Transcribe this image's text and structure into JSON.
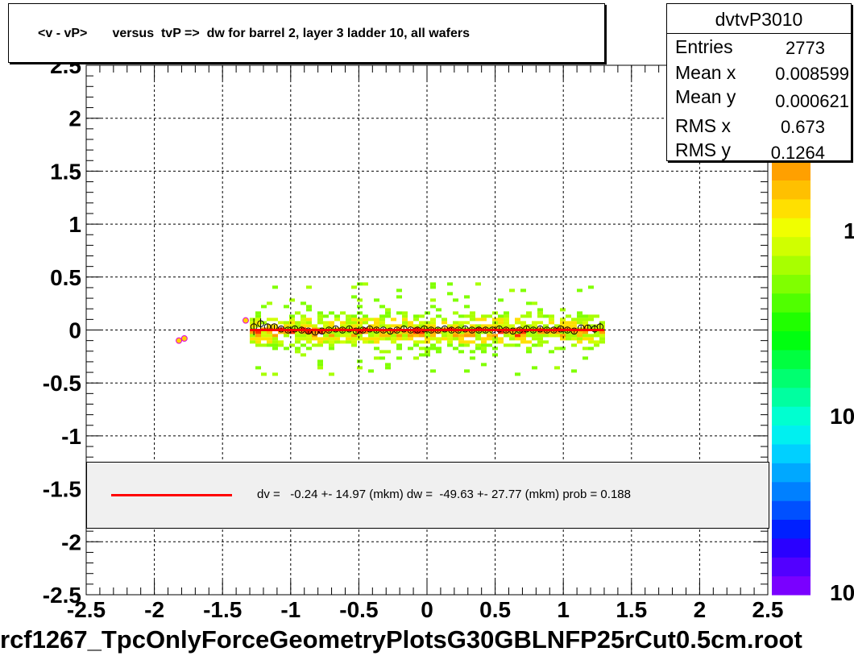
{
  "header": {
    "title": "<v - vP>       versus  tvP =>  dw for barrel 2, layer 3 ladder 10, all wafers"
  },
  "stats": {
    "name": "dvtvP3010",
    "rows": [
      {
        "label": "Entries",
        "value": "2773"
      },
      {
        "label": "Mean x",
        "value": "0.008599"
      },
      {
        "label": "Mean y",
        "value": "0.000621"
      },
      {
        "label": "RMS x",
        "value": "0.673"
      },
      {
        "label": "RMS y",
        "value": "0.1264"
      }
    ]
  },
  "fit": {
    "line_color": "#ff0000",
    "text": "dv =   -0.24 +- 14.97 (mkm) dw =  -49.63 +- 27.77 (mkm) prob = 0.188"
  },
  "footer": {
    "text": "rcf1267_TpcOnlyForceGeometryPlotsG30GBLNFP25rCut0.5cm.root"
  },
  "chart_data": {
    "type": "heatmap",
    "title": "<v - vP>       versus  tvP =>  dw for barrel 2, layer 3 ladder 10, all wafers",
    "xlabel": "",
    "ylabel": "",
    "xlim": [
      -2.5,
      2.5
    ],
    "ylim": [
      -2.5,
      2.5
    ],
    "x_ticks": [
      "-2.5",
      "-2",
      "-1.5",
      "-1",
      "-0.5",
      "0",
      "0.5",
      "1",
      "1.5",
      "2",
      "2.5"
    ],
    "y_ticks": [
      "-2.5",
      "-2",
      "-1.5",
      "-1",
      "-0.5",
      "0",
      "0.5",
      "1",
      "1.5",
      "2",
      "2.5"
    ],
    "grid": true,
    "z_scale": "log",
    "z_tick_labels": [
      "1",
      "10",
      "10"
    ],
    "palette": [
      "#7a00ff",
      "#5200ff",
      "#2a00ff",
      "#0020ff",
      "#0050ff",
      "#0080ff",
      "#00a8ff",
      "#00d0ff",
      "#00f0f0",
      "#00ffd0",
      "#00ffa0",
      "#00ff70",
      "#00ff40",
      "#00ff10",
      "#20ff00",
      "#50ff00",
      "#80ff00",
      "#a8ff00",
      "#d0ff00",
      "#f0ff00",
      "#ffe000",
      "#ffc000",
      "#ffa000"
    ],
    "density": {
      "x_range": [
        -1.3,
        1.3
      ],
      "core_y": [
        -0.1,
        0.08
      ],
      "outer_y": [
        -0.45,
        0.45
      ]
    },
    "profile": {
      "name": "mean v profile",
      "x": [
        -1.27,
        -1.22,
        -1.17,
        -1.12,
        -1.07,
        -1.02,
        -0.97,
        -0.92,
        -0.87,
        -0.82,
        -0.77,
        -0.72,
        -0.67,
        -0.62,
        -0.57,
        -0.52,
        -0.47,
        -0.42,
        -0.37,
        -0.32,
        -0.27,
        -0.22,
        -0.17,
        -0.12,
        -0.07,
        -0.02,
        0.03,
        0.08,
        0.13,
        0.18,
        0.23,
        0.28,
        0.33,
        0.38,
        0.43,
        0.48,
        0.53,
        0.58,
        0.63,
        0.68,
        0.73,
        0.78,
        0.83,
        0.88,
        0.93,
        0.98,
        1.03,
        1.08,
        1.13,
        1.18,
        1.23,
        1.27
      ],
      "y": [
        0.03,
        0.06,
        0.03,
        0.03,
        0.01,
        0.0,
        0.01,
        0.0,
        -0.01,
        -0.02,
        -0.01,
        0.0,
        0.01,
        0.0,
        0.01,
        -0.01,
        0.0,
        0.01,
        0.0,
        0.0,
        -0.01,
        0.0,
        0.01,
        0.0,
        0.0,
        0.01,
        0.0,
        0.0,
        0.01,
        0.0,
        0.0,
        0.01,
        0.0,
        0.0,
        0.0,
        0.0,
        0.01,
        0.0,
        -0.01,
        0.0,
        0.01,
        0.0,
        0.01,
        0.0,
        0.0,
        0.01,
        0.0,
        -0.01,
        0.02,
        0.02,
        0.01,
        0.03
      ],
      "errors": [
        0.08,
        0.05,
        0.03,
        0.02,
        0.02,
        0.02,
        0.02,
        0.02,
        0.02,
        0.02,
        0.02,
        0.02,
        0.02,
        0.02,
        0.02,
        0.02,
        0.02,
        0.02,
        0.02,
        0.02,
        0.02,
        0.02,
        0.02,
        0.02,
        0.02,
        0.02,
        0.02,
        0.02,
        0.02,
        0.02,
        0.02,
        0.02,
        0.02,
        0.02,
        0.02,
        0.02,
        0.02,
        0.02,
        0.02,
        0.02,
        0.02,
        0.02,
        0.02,
        0.02,
        0.02,
        0.02,
        0.02,
        0.02,
        0.02,
        0.03,
        0.04,
        0.04
      ]
    },
    "outliers": {
      "name": "sparse points",
      "x": [
        -1.82,
        -1.78,
        -1.33
      ],
      "y": [
        -0.1,
        -0.08,
        0.09
      ]
    },
    "fit_line": {
      "name": "dv fit",
      "x": [
        -1.3,
        1.3
      ],
      "y": [
        0.0,
        0.0
      ]
    }
  }
}
